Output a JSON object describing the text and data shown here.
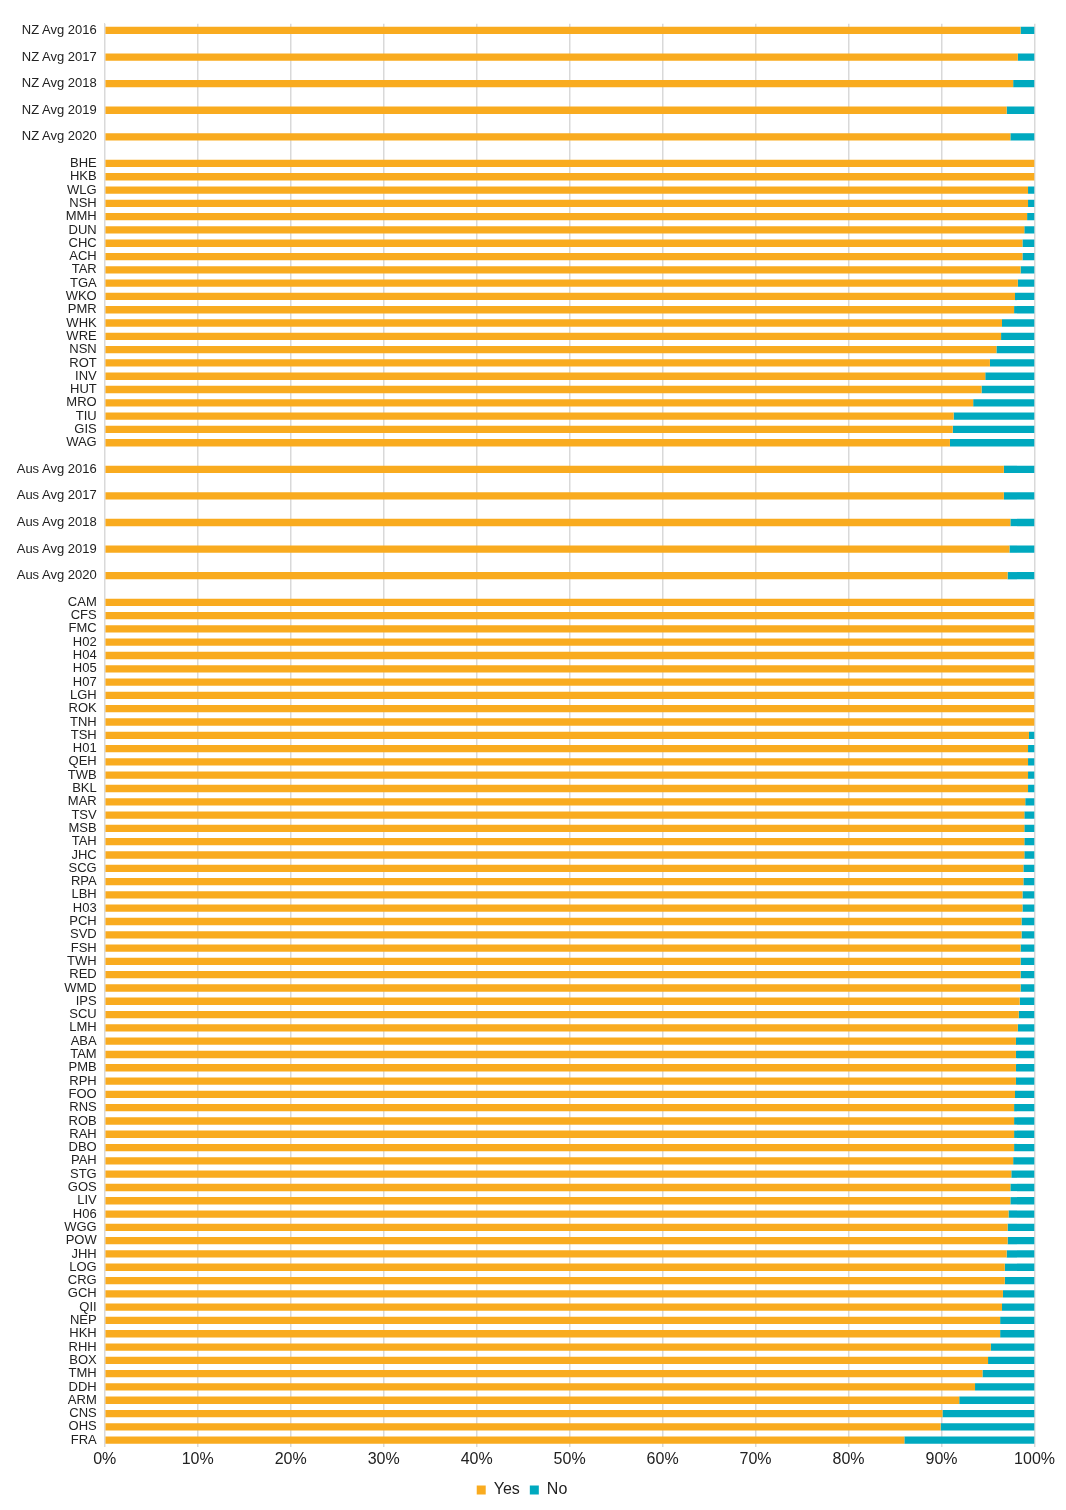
{
  "chart_data": {
    "type": "bar",
    "orientation": "horizontal",
    "stacked": true,
    "grid": "x",
    "legend": "bottom",
    "categories": [
      "NZ Avg 2016",
      null,
      "NZ Avg 2017",
      null,
      "NZ Avg 2018",
      null,
      "NZ Avg 2019",
      null,
      "NZ Avg 2020",
      null,
      "BHE",
      "HKB",
      "WLG",
      "NSH",
      "MMH",
      "DUN",
      "CHC",
      "ACH",
      "TAR",
      "TGA",
      "WKO",
      "PMR",
      "WHK",
      "WRE",
      "NSN",
      "ROT",
      "INV",
      "HUT",
      "MRO",
      "TIU",
      "GIS",
      "WAG",
      null,
      "Aus Avg 2016",
      null,
      "Aus Avg 2017",
      null,
      "Aus Avg 2018",
      null,
      "Aus Avg 2019",
      null,
      "Aus Avg 2020",
      null,
      "CAM",
      "CFS",
      "FMC",
      "H02",
      "H04",
      "H05",
      "H07",
      "LGH",
      "ROK",
      "TNH",
      "TSH",
      "H01",
      "QEH",
      "TWB",
      "BKL",
      "MAR",
      "TSV",
      "MSB",
      "TAH",
      "JHC",
      "SCG",
      "RPA",
      "LBH",
      "H03",
      "PCH",
      "SVD",
      "FSH",
      "TWH",
      "RED",
      "WMD",
      "IPS",
      "SCU",
      "LMH",
      "ABA",
      "TAM",
      "PMB",
      "RPH",
      "FOO",
      "RNS",
      "ROB",
      "RAH",
      "DBO",
      "PAH",
      "STG",
      "GOS",
      "LIV",
      "H06",
      "WGG",
      "POW",
      "JHH",
      "LOG",
      "CRG",
      "GCH",
      "QII",
      "NEP",
      "HKH",
      "RHH",
      "BOX",
      "TMH",
      "DDH",
      "ARM",
      "CNS",
      "OHS",
      "FRA"
    ],
    "series": [
      {
        "name": "Yes",
        "color": "#f9ab1f",
        "values": [
          98.5,
          null,
          98.2,
          null,
          97.7,
          null,
          97.0,
          null,
          97.4,
          null,
          100,
          100,
          99.3,
          99.3,
          99.2,
          98.9,
          98.7,
          98.7,
          98.5,
          98.2,
          97.9,
          97.8,
          96.5,
          96.4,
          95.9,
          95.2,
          94.7,
          94.3,
          93.4,
          91.3,
          91.2,
          90.9,
          null,
          96.7,
          null,
          96.7,
          null,
          97.4,
          null,
          97.3,
          null,
          97.1,
          null,
          100,
          100,
          100,
          100,
          100,
          100,
          100,
          100,
          100,
          100,
          99.4,
          99.3,
          99.3,
          99.3,
          99.3,
          99.0,
          98.9,
          98.9,
          98.9,
          98.9,
          98.8,
          98.8,
          98.7,
          98.7,
          98.6,
          98.6,
          98.5,
          98.5,
          98.5,
          98.5,
          98.4,
          98.3,
          98.2,
          98.0,
          98.0,
          98.0,
          98.0,
          97.9,
          97.8,
          97.8,
          97.8,
          97.8,
          97.7,
          97.5,
          97.4,
          97.4,
          97.2,
          97.1,
          97.1,
          97.0,
          96.8,
          96.8,
          96.6,
          96.5,
          96.3,
          96.3,
          95.3,
          95.0,
          94.4,
          93.6,
          91.9,
          90.1,
          89.9,
          86.0
        ]
      },
      {
        "name": "No",
        "color": "#00a9bf",
        "values": [
          1.5,
          null,
          1.8,
          null,
          2.3,
          null,
          3.0,
          null,
          2.6,
          null,
          0,
          0,
          0.7,
          0.7,
          0.8,
          1.1,
          1.3,
          1.3,
          1.5,
          1.8,
          2.1,
          2.2,
          3.5,
          3.6,
          4.1,
          4.8,
          5.3,
          5.7,
          6.6,
          8.7,
          8.8,
          9.1,
          null,
          3.3,
          null,
          3.3,
          null,
          2.6,
          null,
          2.7,
          null,
          2.9,
          null,
          0,
          0,
          0,
          0,
          0,
          0,
          0,
          0,
          0,
          0,
          0.6,
          0.7,
          0.7,
          0.7,
          0.7,
          1.0,
          1.1,
          1.1,
          1.1,
          1.1,
          1.2,
          1.2,
          1.3,
          1.3,
          1.4,
          1.4,
          1.5,
          1.5,
          1.5,
          1.5,
          1.6,
          1.7,
          1.8,
          2.0,
          2.0,
          2.0,
          2.0,
          2.1,
          2.2,
          2.2,
          2.2,
          2.2,
          2.3,
          2.5,
          2.6,
          2.6,
          2.8,
          2.9,
          2.9,
          3.0,
          3.2,
          3.2,
          3.4,
          3.5,
          3.7,
          3.7,
          4.7,
          5.0,
          5.6,
          6.4,
          8.1,
          9.9,
          10.1,
          14.0
        ]
      }
    ],
    "xlim": [
      0,
      100
    ],
    "xticks": [
      {
        "value": 0,
        "label": "0%"
      },
      {
        "value": 10,
        "label": "10%"
      },
      {
        "value": 20,
        "label": "20%"
      },
      {
        "value": 30,
        "label": "30%"
      },
      {
        "value": 40,
        "label": "40%"
      },
      {
        "value": 50,
        "label": "50%"
      },
      {
        "value": 60,
        "label": "60%"
      },
      {
        "value": 70,
        "label": "70%"
      },
      {
        "value": 80,
        "label": "80%"
      },
      {
        "value": 90,
        "label": "90%"
      },
      {
        "value": 100,
        "label": "100%"
      }
    ]
  }
}
